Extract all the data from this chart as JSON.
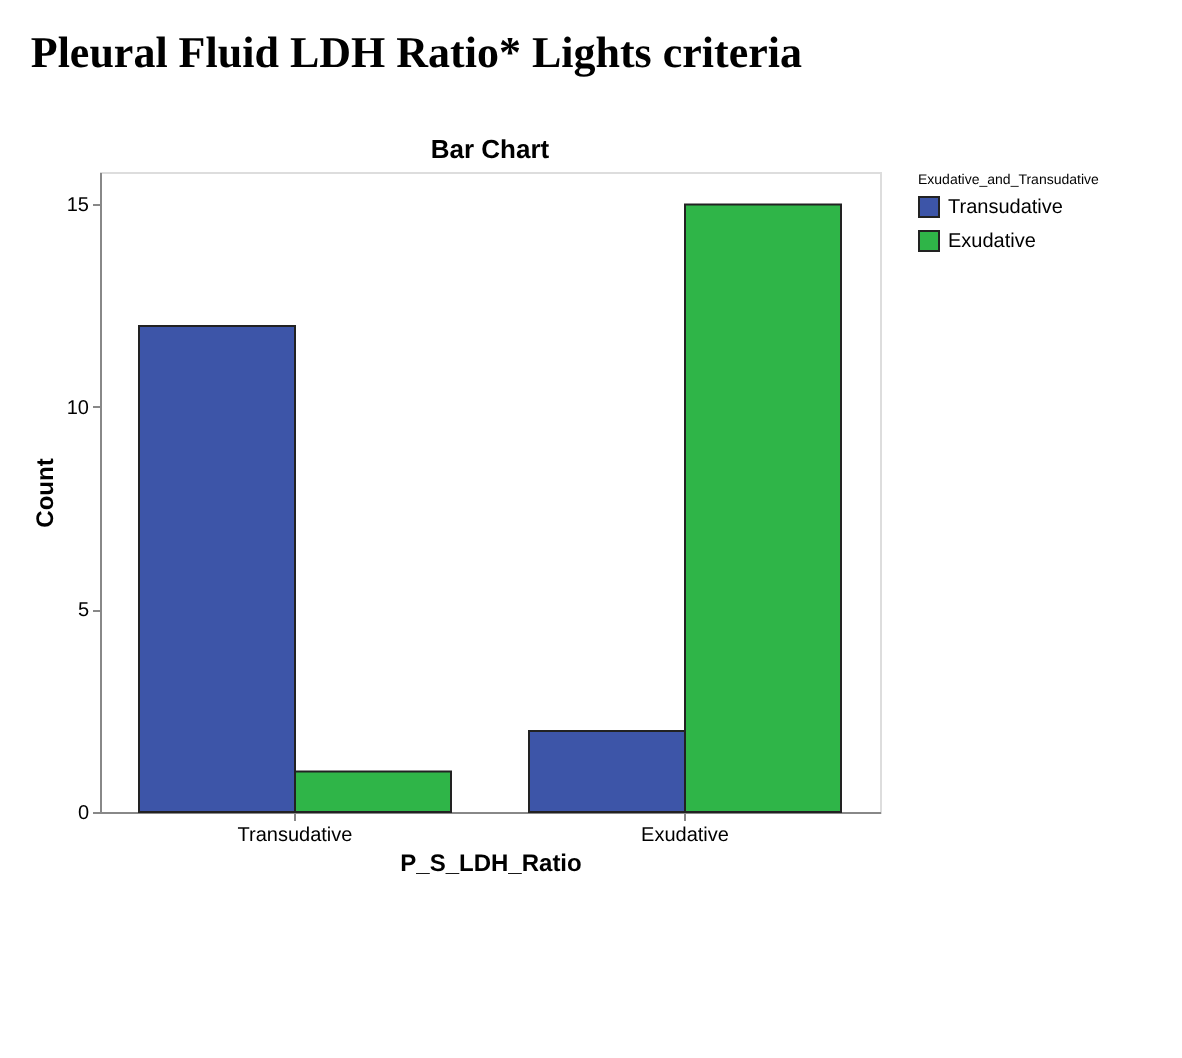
{
  "chart_data": {
    "type": "bar",
    "title": "Pleural Fluid LDH Ratio* Lights criteria",
    "subtitle": "Bar Chart",
    "xlabel": "P_S_LDH_Ratio",
    "ylabel": "Count",
    "legend_title": "Exudative_and_Transudative",
    "categories": [
      "Transudative",
      "Exudative"
    ],
    "series": [
      {
        "name": "Transudative",
        "color": "#3d55a8",
        "values": [
          12,
          2
        ]
      },
      {
        "name": "Exudative",
        "color": "#2fb548",
        "values": [
          1,
          15
        ]
      }
    ],
    "ylim": [
      0,
      15.8
    ],
    "yticks": [
      0,
      5,
      10,
      15
    ],
    "grid": false,
    "legend": "top right"
  }
}
